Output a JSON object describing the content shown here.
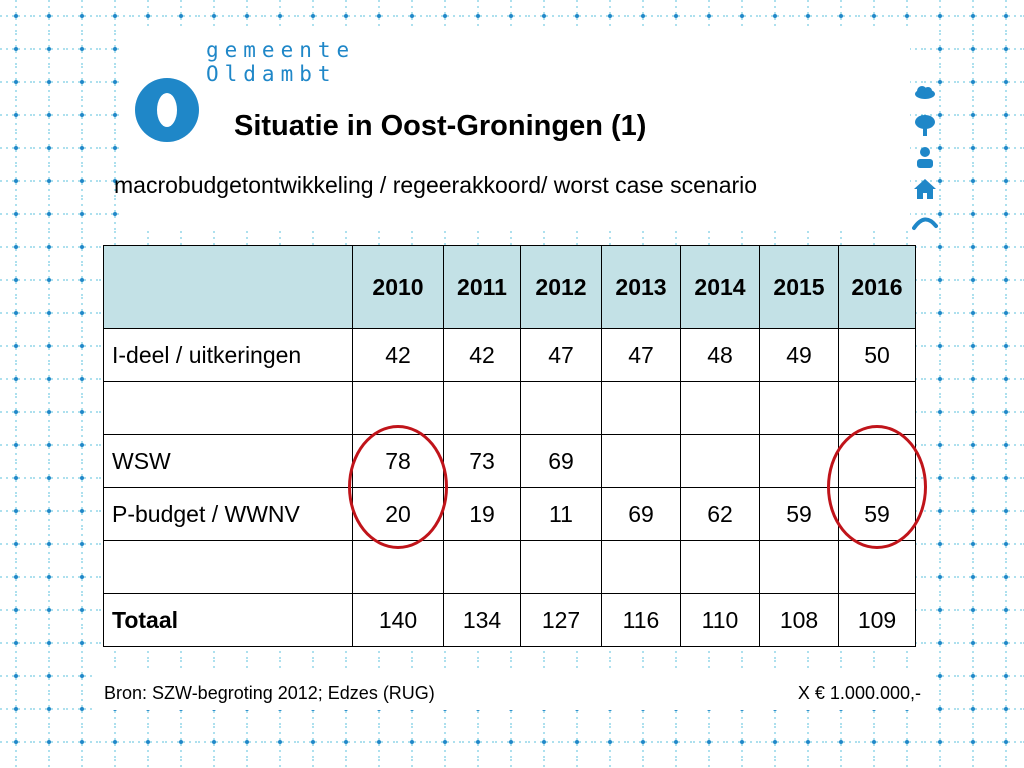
{
  "logo": {
    "line1": "gemeente",
    "line2": "Oldambt"
  },
  "title": "Situatie in Oost-Groningen (1)",
  "subtitle": "macrobudgetontwikkeling / regeerakkoord/ worst case scenario",
  "table": {
    "header": [
      "",
      "2010",
      "2011",
      "2012",
      "2013",
      "2014",
      "2015",
      "2016"
    ],
    "rows": [
      {
        "label": "I-deel / uitkeringen",
        "values": [
          "42",
          "42",
          "47",
          "47",
          "48",
          "49",
          "50"
        ]
      },
      {
        "label": "",
        "values": [
          "",
          "",
          "",
          "",
          "",
          "",
          ""
        ]
      },
      {
        "label": "WSW",
        "values": [
          "78",
          "73",
          "69",
          "",
          "",
          "",
          ""
        ]
      },
      {
        "label": "P-budget / WWNV",
        "values": [
          "20",
          "19",
          "11",
          "69",
          "62",
          "59",
          "59"
        ]
      },
      {
        "label": "",
        "values": [
          "",
          "",
          "",
          "",
          "",
          "",
          ""
        ]
      },
      {
        "label": "Totaal",
        "values": [
          "140",
          "134",
          "127",
          "116",
          "110",
          "108",
          "109"
        ]
      }
    ]
  },
  "footer": {
    "source": "Bron: SZW-begroting 2012; Edzes (RUG)",
    "unit": "X € 1.000.000,-"
  },
  "colors": {
    "brand": "#1f87c8",
    "grid": "#5bc2dc",
    "header_fill": "#c3e1e6",
    "highlight": "#c0141a"
  },
  "icons": [
    "cloud-icon",
    "tree-icon",
    "person-icon",
    "house-icon",
    "wave-icon"
  ]
}
